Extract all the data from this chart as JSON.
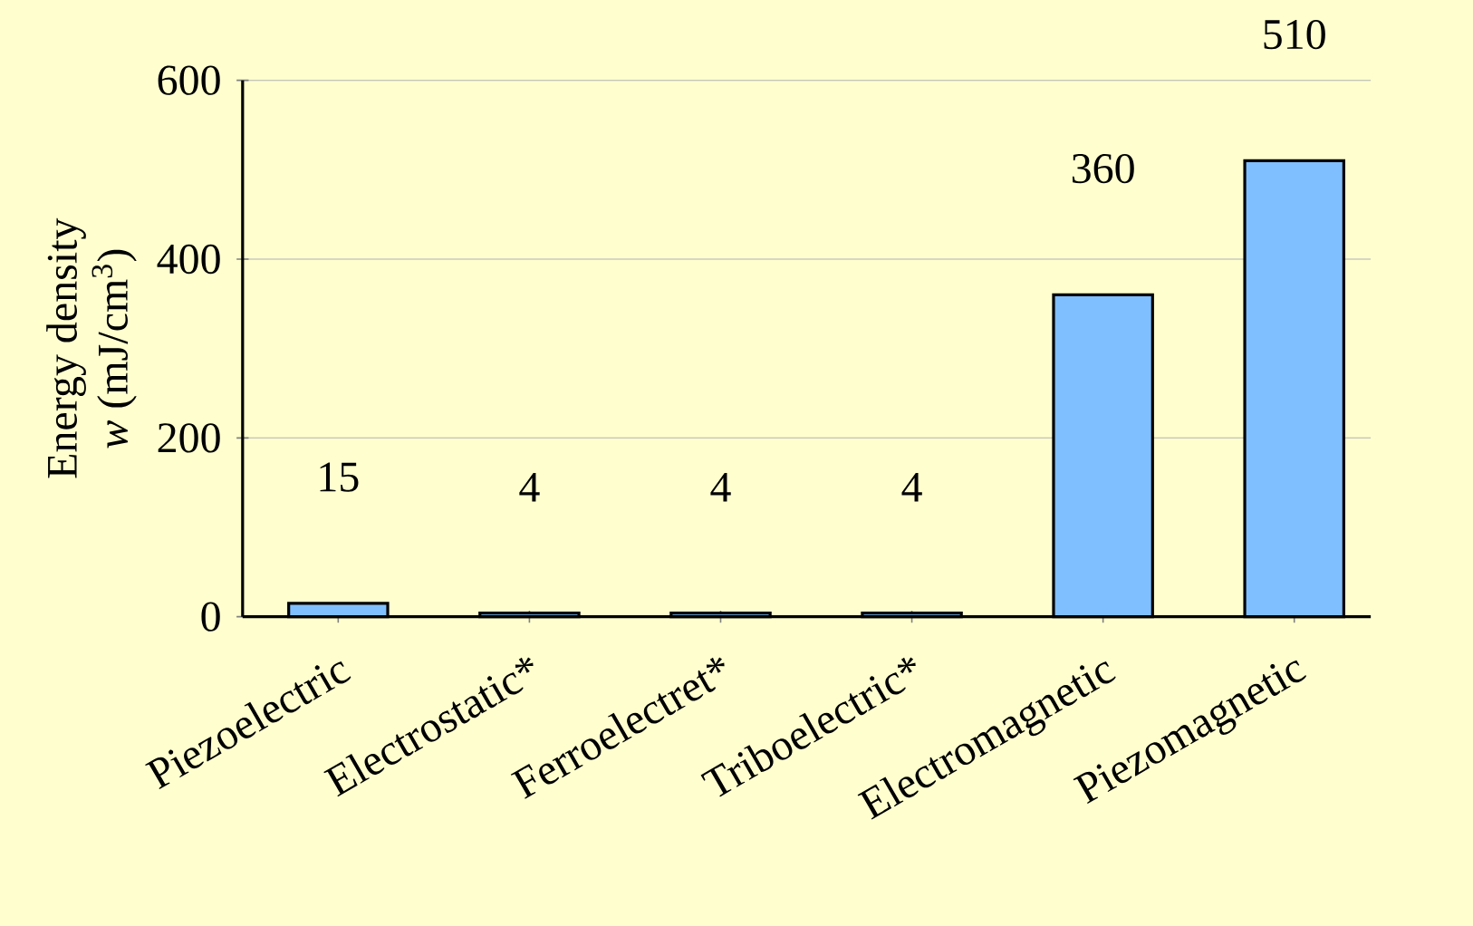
{
  "chart_data": {
    "type": "bar",
    "categories": [
      "Piezoelectric",
      "Electrostatic*",
      "Ferroelectret*",
      "Triboelectric*",
      "Electromagnetic",
      "Piezomagnetic"
    ],
    "values": [
      15,
      4,
      4,
      4,
      360,
      510
    ],
    "color": "#80bfff",
    "ylabel": "Energy density\n*w* (mJ/cm$^{3}$)",
    "ylim": [
      0,
      600
    ],
    "yticks": [
      0,
      200,
      400,
      600
    ],
    "grid": "y",
    "data_labels": true
  }
}
